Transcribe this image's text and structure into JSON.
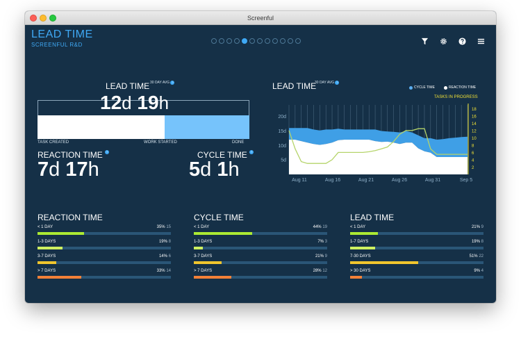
{
  "window": {
    "title": "Screenful"
  },
  "header": {
    "title": "LEAD TIME",
    "subtitle": "SCREENFUL R&D",
    "page_count": 12,
    "active_page": 4
  },
  "toolbar": {
    "icons": [
      "filter-icon",
      "gear-icon",
      "help-icon",
      "menu-icon"
    ]
  },
  "lead_time": {
    "label": "LEAD TIME",
    "avg_label": "30 DAY AVG",
    "days": "12",
    "days_unit": "d",
    "hours": "19",
    "hours_unit": "h",
    "start_label": "TASK CREATED",
    "mid_label": "WORK STARTED",
    "end_label": "DONE",
    "reaction_share": 0.6
  },
  "reaction_time": {
    "label": "REACTION TIME",
    "days": "7",
    "days_unit": "d",
    "hours": "17",
    "hours_unit": "h"
  },
  "cycle_time": {
    "label": "CYCLE TIME",
    "days": "5",
    "days_unit": "d",
    "hours": "1",
    "hours_unit": "h"
  },
  "chart_legend": {
    "cycle": "CYCLE TIME",
    "reaction": "REACTION TIME",
    "tasks": "TASKS IN PROGRESS"
  },
  "chart_data": {
    "type": "area",
    "title": "LEAD TIME",
    "subtitle": "30 DAY AVG",
    "x_labels": [
      "Aug 11",
      "Aug 16",
      "Aug 21",
      "Aug 26",
      "Aug 31",
      "Sep 5"
    ],
    "y_left_ticks": [
      "5d",
      "10d",
      "15d",
      "20d"
    ],
    "y_left_range": [
      0,
      24
    ],
    "y_right_ticks": [
      "2",
      "4",
      "6",
      "8",
      "10",
      "12",
      "14",
      "16",
      "18"
    ],
    "y_right_range": [
      0,
      19
    ],
    "x_range": [
      0,
      29
    ],
    "series": [
      {
        "name": "REACTION TIME",
        "color": "#ffffff",
        "values": [
          12,
          12,
          11.5,
          11,
          10.5,
          10.2,
          10.5,
          11,
          11.8,
          12,
          12,
          12,
          12,
          12,
          11.5,
          11.2,
          11.3,
          11,
          10.5,
          11,
          11,
          9,
          8,
          7.5,
          6,
          6,
          6,
          6,
          6,
          6
        ]
      },
      {
        "name": "CYCLE TIME",
        "color": "#3f9fe6",
        "values": [
          4,
          4,
          4.5,
          5,
          5,
          5,
          5,
          4.5,
          4,
          3.5,
          3.5,
          3.5,
          3.5,
          3.5,
          4,
          3.8,
          3.5,
          3.7,
          4,
          4,
          3.5,
          4.5,
          4.5,
          5,
          6,
          6.2,
          6.5,
          6.7,
          6.9,
          7
        ]
      },
      {
        "name": "TASKS IN PROGRESS",
        "color": "#b5d46a",
        "values": [
          12,
          7,
          3.5,
          3,
          3,
          3,
          3,
          4,
          6,
          6,
          6,
          6,
          6,
          6.2,
          6.5,
          7,
          7.5,
          9,
          11,
          12,
          12,
          12.5,
          12.5,
          7,
          5.5,
          5.5,
          5.5,
          5.5,
          5.5,
          5.5
        ]
      }
    ]
  },
  "sections": [
    {
      "title": "REACTION TIME",
      "rows": [
        {
          "label": "< 1 DAY",
          "pct": "35%",
          "count": "15",
          "value": 0.35,
          "color": "#acea33"
        },
        {
          "label": "1-3 DAYS",
          "pct": "19%",
          "count": "8",
          "value": 0.19,
          "color": "#cdf061"
        },
        {
          "label": "3-7 DAYS",
          "pct": "14%",
          "count": "6",
          "value": 0.14,
          "color": "#f0c52d"
        },
        {
          "label": "> 7 DAYS",
          "pct": "33%",
          "count": "14",
          "value": 0.33,
          "color": "#f28038"
        }
      ]
    },
    {
      "title": "CYCLE TIME",
      "rows": [
        {
          "label": "< 1 DAY",
          "pct": "44%",
          "count": "19",
          "value": 0.44,
          "color": "#acea33"
        },
        {
          "label": "1-3 DAYS",
          "pct": "7%",
          "count": "3",
          "value": 0.07,
          "color": "#cdf061"
        },
        {
          "label": "3-7 DAYS",
          "pct": "21%",
          "count": "9",
          "value": 0.21,
          "color": "#f0c52d"
        },
        {
          "label": "> 7 DAYS",
          "pct": "28%",
          "count": "12",
          "value": 0.28,
          "color": "#f28038"
        }
      ]
    },
    {
      "title": "LEAD TIME",
      "rows": [
        {
          "label": "< 1 DAY",
          "pct": "21%",
          "count": "9",
          "value": 0.21,
          "color": "#acea33"
        },
        {
          "label": "1-7 DAYS",
          "pct": "19%",
          "count": "8",
          "value": 0.19,
          "color": "#cdf061"
        },
        {
          "label": "7-30 DAYS",
          "pct": "51%",
          "count": "22",
          "value": 0.51,
          "color": "#f0c52d"
        },
        {
          "label": "> 30 DAYS",
          "pct": "9%",
          "count": "4",
          "value": 0.09,
          "color": "#f28038"
        }
      ]
    }
  ]
}
